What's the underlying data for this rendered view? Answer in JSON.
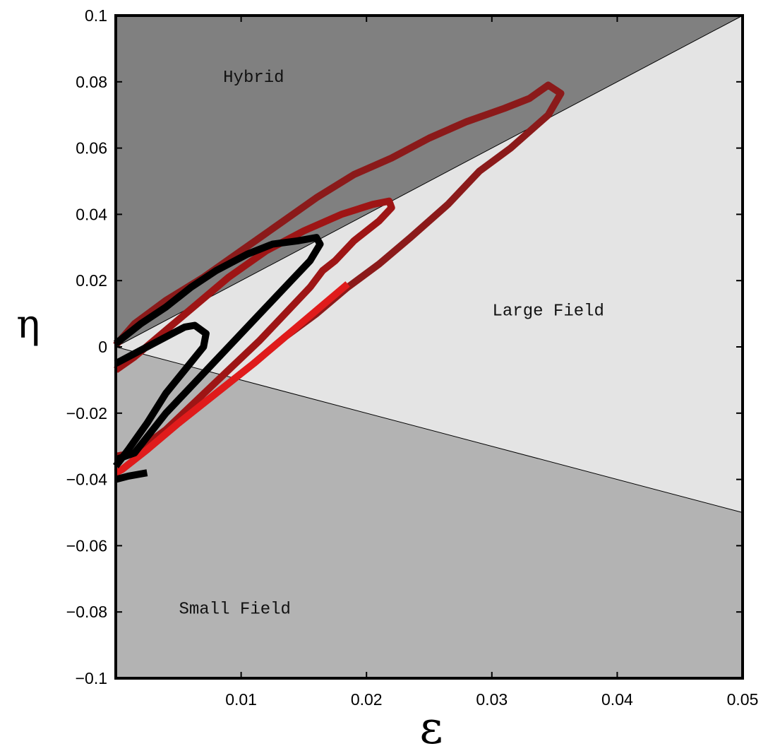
{
  "chart_data": {
    "type": "line",
    "title": "",
    "xlabel": "ε",
    "ylabel": "η",
    "xlim": [
      0,
      0.05
    ],
    "ylim": [
      -0.1,
      0.1
    ],
    "x_ticks": [
      0.01,
      0.02,
      0.03,
      0.04,
      0.05
    ],
    "x_tick_labels": [
      "0.01",
      "0.02",
      "0.03",
      "0.04",
      "0.05"
    ],
    "y_ticks": [
      -0.1,
      -0.08,
      -0.06,
      -0.04,
      -0.02,
      0,
      0.02,
      0.04,
      0.06,
      0.08,
      0.1
    ],
    "y_tick_labels": [
      "−0.1",
      "−0.08",
      "−0.06",
      "−0.04",
      "−0.02",
      "0",
      "0.02",
      "0.04",
      "0.06",
      "0.08",
      "0.1"
    ],
    "grid": false,
    "legend": "none",
    "regions": [
      {
        "label": "Hybrid",
        "label_at": [
          0.011,
          0.08
        ],
        "color": "#808080",
        "boundary": "eta > 2*epsilon"
      },
      {
        "label": "Large Field",
        "label_at": [
          0.0345,
          0.0095
        ],
        "color": "#e4e4e4",
        "boundary": "-epsilon <= eta <= 2*epsilon"
      },
      {
        "label": "Small Field",
        "label_at": [
          0.0095,
          -0.0805
        ],
        "color": "#b3b3b3",
        "boundary": "eta < -epsilon"
      }
    ],
    "series": [
      {
        "color": "#8b1a1a",
        "points": [
          [
            0.0,
            0.0005
          ],
          [
            0.0015,
            0.007
          ],
          [
            0.004,
            0.014
          ],
          [
            0.007,
            0.021
          ],
          [
            0.01,
            0.029
          ],
          [
            0.013,
            0.037
          ],
          [
            0.016,
            0.045
          ],
          [
            0.019,
            0.052
          ],
          [
            0.022,
            0.057
          ],
          [
            0.025,
            0.063
          ],
          [
            0.028,
            0.068
          ],
          [
            0.031,
            0.072
          ],
          [
            0.033,
            0.075
          ],
          [
            0.0345,
            0.079
          ],
          [
            0.0355,
            0.0765
          ],
          [
            0.0345,
            0.07
          ],
          [
            0.0315,
            0.06
          ],
          [
            0.029,
            0.053
          ],
          [
            0.0265,
            0.043
          ],
          [
            0.0235,
            0.033
          ],
          [
            0.021,
            0.025
          ],
          [
            0.0185,
            0.018
          ],
          [
            0.016,
            0.01
          ],
          [
            0.0135,
            0.003
          ],
          [
            0.011,
            -0.005
          ],
          [
            0.008,
            -0.014
          ],
          [
            0.005,
            -0.023
          ],
          [
            0.0025,
            -0.031
          ],
          [
            0.0005,
            -0.037
          ],
          [
            0.0,
            -0.038
          ]
        ]
      },
      {
        "color": "#9e1515",
        "points": [
          [
            0.0,
            -0.007
          ],
          [
            0.0015,
            -0.003
          ],
          [
            0.004,
            0.005
          ],
          [
            0.0065,
            0.013
          ],
          [
            0.009,
            0.021
          ],
          [
            0.012,
            0.029
          ],
          [
            0.015,
            0.035
          ],
          [
            0.018,
            0.04
          ],
          [
            0.0205,
            0.043
          ],
          [
            0.0218,
            0.044
          ],
          [
            0.022,
            0.042
          ],
          [
            0.021,
            0.038
          ],
          [
            0.019,
            0.032
          ],
          [
            0.0175,
            0.026
          ],
          [
            0.0165,
            0.023
          ],
          [
            0.0155,
            0.018
          ],
          [
            0.0135,
            0.01
          ],
          [
            0.0115,
            0.002
          ],
          [
            0.009,
            -0.007
          ],
          [
            0.0065,
            -0.016
          ],
          [
            0.004,
            -0.025
          ],
          [
            0.0015,
            -0.032
          ],
          [
            0.0,
            -0.033
          ]
        ]
      },
      {
        "color": "#e01b1b",
        "points": [
          [
            0.0185,
            0.019
          ],
          [
            0.016,
            0.011
          ],
          [
            0.0135,
            0.003
          ],
          [
            0.011,
            -0.005
          ],
          [
            0.008,
            -0.014
          ],
          [
            0.005,
            -0.023
          ],
          [
            0.0025,
            -0.031
          ],
          [
            0.0005,
            -0.037
          ],
          [
            0.0,
            -0.038
          ]
        ]
      },
      {
        "color": "#000000",
        "points": [
          [
            0.0,
            0.001
          ],
          [
            0.002,
            0.007
          ],
          [
            0.004,
            0.012
          ],
          [
            0.006,
            0.018
          ],
          [
            0.008,
            0.023
          ],
          [
            0.0105,
            0.028
          ],
          [
            0.0125,
            0.031
          ],
          [
            0.0145,
            0.032
          ],
          [
            0.016,
            0.033
          ],
          [
            0.0163,
            0.031
          ],
          [
            0.0155,
            0.026
          ],
          [
            0.014,
            0.02
          ],
          [
            0.0115,
            0.01
          ],
          [
            0.009,
            0.0
          ],
          [
            0.0065,
            -0.01
          ],
          [
            0.004,
            -0.02
          ],
          [
            0.0015,
            -0.032
          ],
          [
            0.0,
            -0.034
          ]
        ]
      },
      {
        "color": "#000000",
        "points": [
          [
            0.0,
            -0.005
          ],
          [
            0.002,
            -0.001
          ],
          [
            0.004,
            0.003
          ],
          [
            0.0055,
            0.006
          ],
          [
            0.0063,
            0.0065
          ],
          [
            0.0072,
            0.004
          ],
          [
            0.007,
            0.0
          ],
          [
            0.0055,
            -0.007
          ],
          [
            0.004,
            -0.014
          ],
          [
            0.0025,
            -0.023
          ],
          [
            0.001,
            -0.031
          ],
          [
            0.0,
            -0.036
          ]
        ]
      },
      {
        "color": "#000000",
        "points": [
          [
            0.0025,
            -0.038
          ],
          [
            0.001,
            -0.039
          ],
          [
            0.0,
            -0.04
          ]
        ]
      }
    ]
  }
}
